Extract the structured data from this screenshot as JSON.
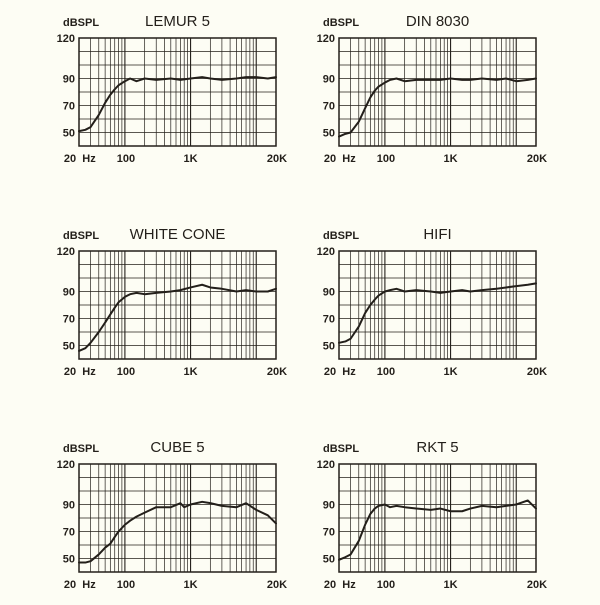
{
  "chart_data": [
    {
      "type": "line",
      "title": "LEMUR 5",
      "ylabel": "dBSPL",
      "xscale": "log",
      "xlim": [
        20,
        20000
      ],
      "ylim": [
        40,
        120
      ],
      "grid": true,
      "x_tick_labels": [
        "20",
        "Hz",
        "100",
        "1K",
        "20K"
      ],
      "y_tick_labels": [
        "120",
        "90",
        "70",
        "50"
      ],
      "series": [
        {
          "x": [
            20,
            25,
            30,
            40,
            50,
            60,
            70,
            80,
            100,
            120,
            150,
            200,
            300,
            500,
            700,
            1000,
            1500,
            2000,
            3000,
            5000,
            7000,
            10000,
            15000,
            20000
          ],
          "y": [
            51,
            52,
            54,
            63,
            72,
            78,
            82,
            85,
            88,
            90,
            88,
            90,
            89,
            90,
            89,
            90,
            91,
            90,
            89,
            90,
            91,
            91,
            90,
            91
          ]
        }
      ]
    },
    {
      "type": "line",
      "title": "DIN 8030",
      "ylabel": "dBSPL",
      "xscale": "log",
      "xlim": [
        20,
        20000
      ],
      "ylim": [
        40,
        120
      ],
      "grid": true,
      "x_tick_labels": [
        "20",
        "Hz",
        "100",
        "1K",
        "20K"
      ],
      "y_tick_labels": [
        "120",
        "90",
        "70",
        "50"
      ],
      "series": [
        {
          "x": [
            20,
            25,
            30,
            40,
            50,
            60,
            70,
            80,
            100,
            120,
            150,
            200,
            300,
            500,
            700,
            1000,
            1500,
            2000,
            3000,
            5000,
            7000,
            10000,
            15000,
            20000
          ],
          "y": [
            47,
            49,
            50,
            58,
            68,
            76,
            81,
            84,
            87,
            89,
            90,
            88,
            89,
            89,
            89,
            90,
            89,
            89,
            90,
            89,
            90,
            88,
            89,
            90
          ]
        }
      ]
    },
    {
      "type": "line",
      "title": "WHITE CONE",
      "ylabel": "dBSPL",
      "xscale": "log",
      "xlim": [
        20,
        20000
      ],
      "ylim": [
        40,
        120
      ],
      "grid": true,
      "x_tick_labels": [
        "20",
        "Hz",
        "100",
        "1K",
        "20K"
      ],
      "y_tick_labels": [
        "120",
        "90",
        "70",
        "50"
      ],
      "series": [
        {
          "x": [
            20,
            25,
            30,
            40,
            50,
            60,
            70,
            80,
            100,
            120,
            150,
            200,
            300,
            500,
            700,
            1000,
            1500,
            2000,
            3000,
            5000,
            7000,
            10000,
            15000,
            20000
          ],
          "y": [
            46,
            48,
            52,
            60,
            67,
            73,
            78,
            82,
            86,
            88,
            89,
            88,
            89,
            90,
            91,
            93,
            95,
            93,
            92,
            90,
            91,
            90,
            90,
            92
          ]
        }
      ]
    },
    {
      "type": "line",
      "title": "HIFI",
      "ylabel": "dBSPL",
      "xscale": "log",
      "xlim": [
        20,
        20000
      ],
      "ylim": [
        40,
        120
      ],
      "grid": true,
      "x_tick_labels": [
        "20",
        "Hz",
        "100",
        "1K",
        "20K"
      ],
      "y_tick_labels": [
        "120",
        "90",
        "70",
        "50"
      ],
      "series": [
        {
          "x": [
            20,
            25,
            30,
            40,
            50,
            60,
            70,
            80,
            100,
            120,
            150,
            200,
            300,
            500,
            700,
            1000,
            1500,
            2000,
            3000,
            5000,
            7000,
            10000,
            15000,
            20000
          ],
          "y": [
            52,
            53,
            55,
            64,
            74,
            80,
            84,
            87,
            90,
            91,
            92,
            90,
            91,
            90,
            89,
            90,
            91,
            90,
            91,
            92,
            93,
            94,
            95,
            96
          ]
        }
      ]
    },
    {
      "type": "line",
      "title": "CUBE 5",
      "ylabel": "dBSPL",
      "xscale": "log",
      "xlim": [
        20,
        20000
      ],
      "ylim": [
        40,
        120
      ],
      "grid": true,
      "x_tick_labels": [
        "20",
        "Hz",
        "100",
        "1K",
        "20K"
      ],
      "y_tick_labels": [
        "120",
        "90",
        "70",
        "50"
      ],
      "series": [
        {
          "x": [
            20,
            25,
            30,
            40,
            50,
            60,
            70,
            80,
            100,
            120,
            150,
            200,
            300,
            500,
            700,
            800,
            1000,
            1500,
            2000,
            3000,
            5000,
            7000,
            10000,
            15000,
            20000
          ],
          "y": [
            47,
            47,
            48,
            53,
            58,
            61,
            66,
            70,
            75,
            78,
            81,
            84,
            88,
            88,
            91,
            88,
            90,
            92,
            91,
            89,
            88,
            91,
            86,
            82,
            76
          ]
        }
      ]
    },
    {
      "type": "line",
      "title": "RKT 5",
      "ylabel": "dBSPL",
      "xscale": "log",
      "xlim": [
        20,
        20000
      ],
      "ylim": [
        40,
        120
      ],
      "grid": true,
      "x_tick_labels": [
        "20",
        "Hz",
        "100",
        "1K",
        "20K"
      ],
      "y_tick_labels": [
        "120",
        "90",
        "70",
        "50"
      ],
      "series": [
        {
          "x": [
            20,
            25,
            30,
            40,
            50,
            60,
            70,
            80,
            100,
            120,
            150,
            200,
            300,
            500,
            700,
            1000,
            1500,
            2000,
            3000,
            5000,
            7000,
            10000,
            15000,
            20000
          ],
          "y": [
            49,
            51,
            53,
            63,
            75,
            83,
            87,
            89,
            90,
            88,
            89,
            88,
            87,
            86,
            87,
            85,
            85,
            87,
            89,
            88,
            89,
            90,
            93,
            87
          ]
        }
      ]
    }
  ]
}
